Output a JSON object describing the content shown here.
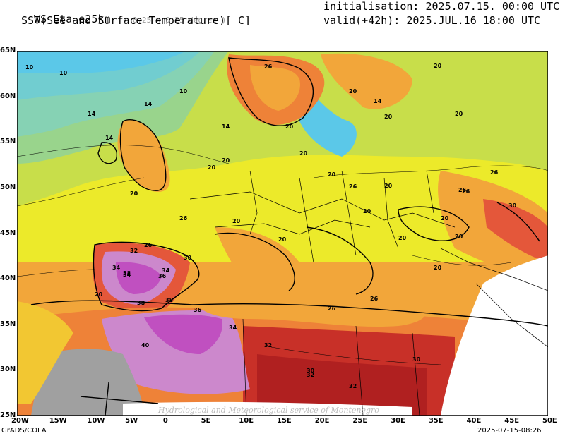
{
  "header": {
    "model": "WS_Eta_e25km",
    "resolution": "( 0.25 x 0.25 degree )",
    "variable": "SST(See and Surface Temperature)[ C]",
    "init_label": "initialisation:",
    "init_value": "2025.07.15. 00:00 UTC",
    "valid_label": "valid(+42h):",
    "valid_value": "2025.JUL.16 18:00 UTC"
  },
  "axes": {
    "lon_ticks": [
      "20W",
      "15W",
      "10W",
      "5W",
      "0",
      "5E",
      "10E",
      "15E",
      "20E",
      "25E",
      "30E",
      "35E",
      "40E",
      "45E",
      "50E"
    ],
    "lat_ticks": [
      "65N",
      "60N",
      "55N",
      "50N",
      "45N",
      "40N",
      "35N",
      "30N",
      "25N"
    ]
  },
  "map": {
    "contour_labels": [
      "10",
      "14",
      "20",
      "26",
      "30",
      "32",
      "34",
      "36",
      "38",
      "40"
    ],
    "colors": {
      "t10": "#5bc8e8",
      "t12": "#71cdd0",
      "t14": "#86d2b4",
      "t16": "#99d48c",
      "t18": "#c8de4a",
      "t20": "#ecea2a",
      "t22": "#f2c732",
      "t24": "#f2a63a",
      "t26": "#ee8238",
      "t28": "#e4573a",
      "t30": "#c83028",
      "t32": "#b02020",
      "t34": "#cc88cc",
      "t36": "#c050c0",
      "t40": "#a0a0a0"
    },
    "watermark": "Hydrological and Meteorological service of Montenegro"
  },
  "footer": {
    "left": "GrADS/COLA",
    "right": "2025-07-15-08:26"
  }
}
